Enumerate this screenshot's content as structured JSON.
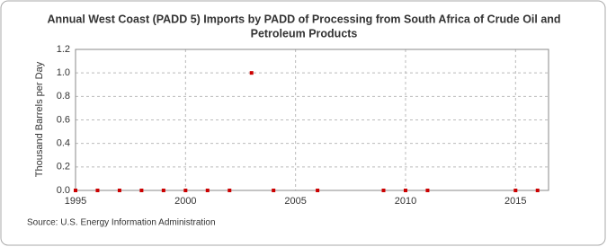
{
  "chart_data": {
    "type": "scatter",
    "title": [
      "Annual West Coast (PADD 5) Imports by PADD of Processing from South Africa of Crude Oil and",
      "Petroleum Products"
    ],
    "y_label": "Thousand Barrels per Day",
    "source": "Source: U.S. Energy Information Administration",
    "x": [
      1995,
      1996,
      1997,
      1998,
      1999,
      2000,
      2001,
      2002,
      2003,
      2004,
      2006,
      2009,
      2010,
      2011,
      2015,
      2016
    ],
    "values": [
      0,
      0,
      0,
      0,
      0,
      0,
      0,
      0,
      1.0,
      0,
      0,
      0,
      0,
      0,
      0,
      0
    ],
    "color": "#cc0000",
    "xlim": [
      1995,
      2016.5
    ],
    "xticks": [
      1995,
      2000,
      2005,
      2010,
      2015
    ],
    "ylim": [
      0,
      1.2
    ],
    "yticks": [
      {
        "value": 0,
        "label": "0.0"
      },
      {
        "value": 0.2,
        "label": "0.2"
      },
      {
        "value": 0.4,
        "label": "0.4"
      },
      {
        "value": 0.6,
        "label": "0.6"
      },
      {
        "value": 0.8,
        "label": "0.8"
      },
      {
        "value": 1.0,
        "label": "1.0"
      },
      {
        "value": 1.2,
        "label": "1.2"
      }
    ],
    "grid": true
  }
}
